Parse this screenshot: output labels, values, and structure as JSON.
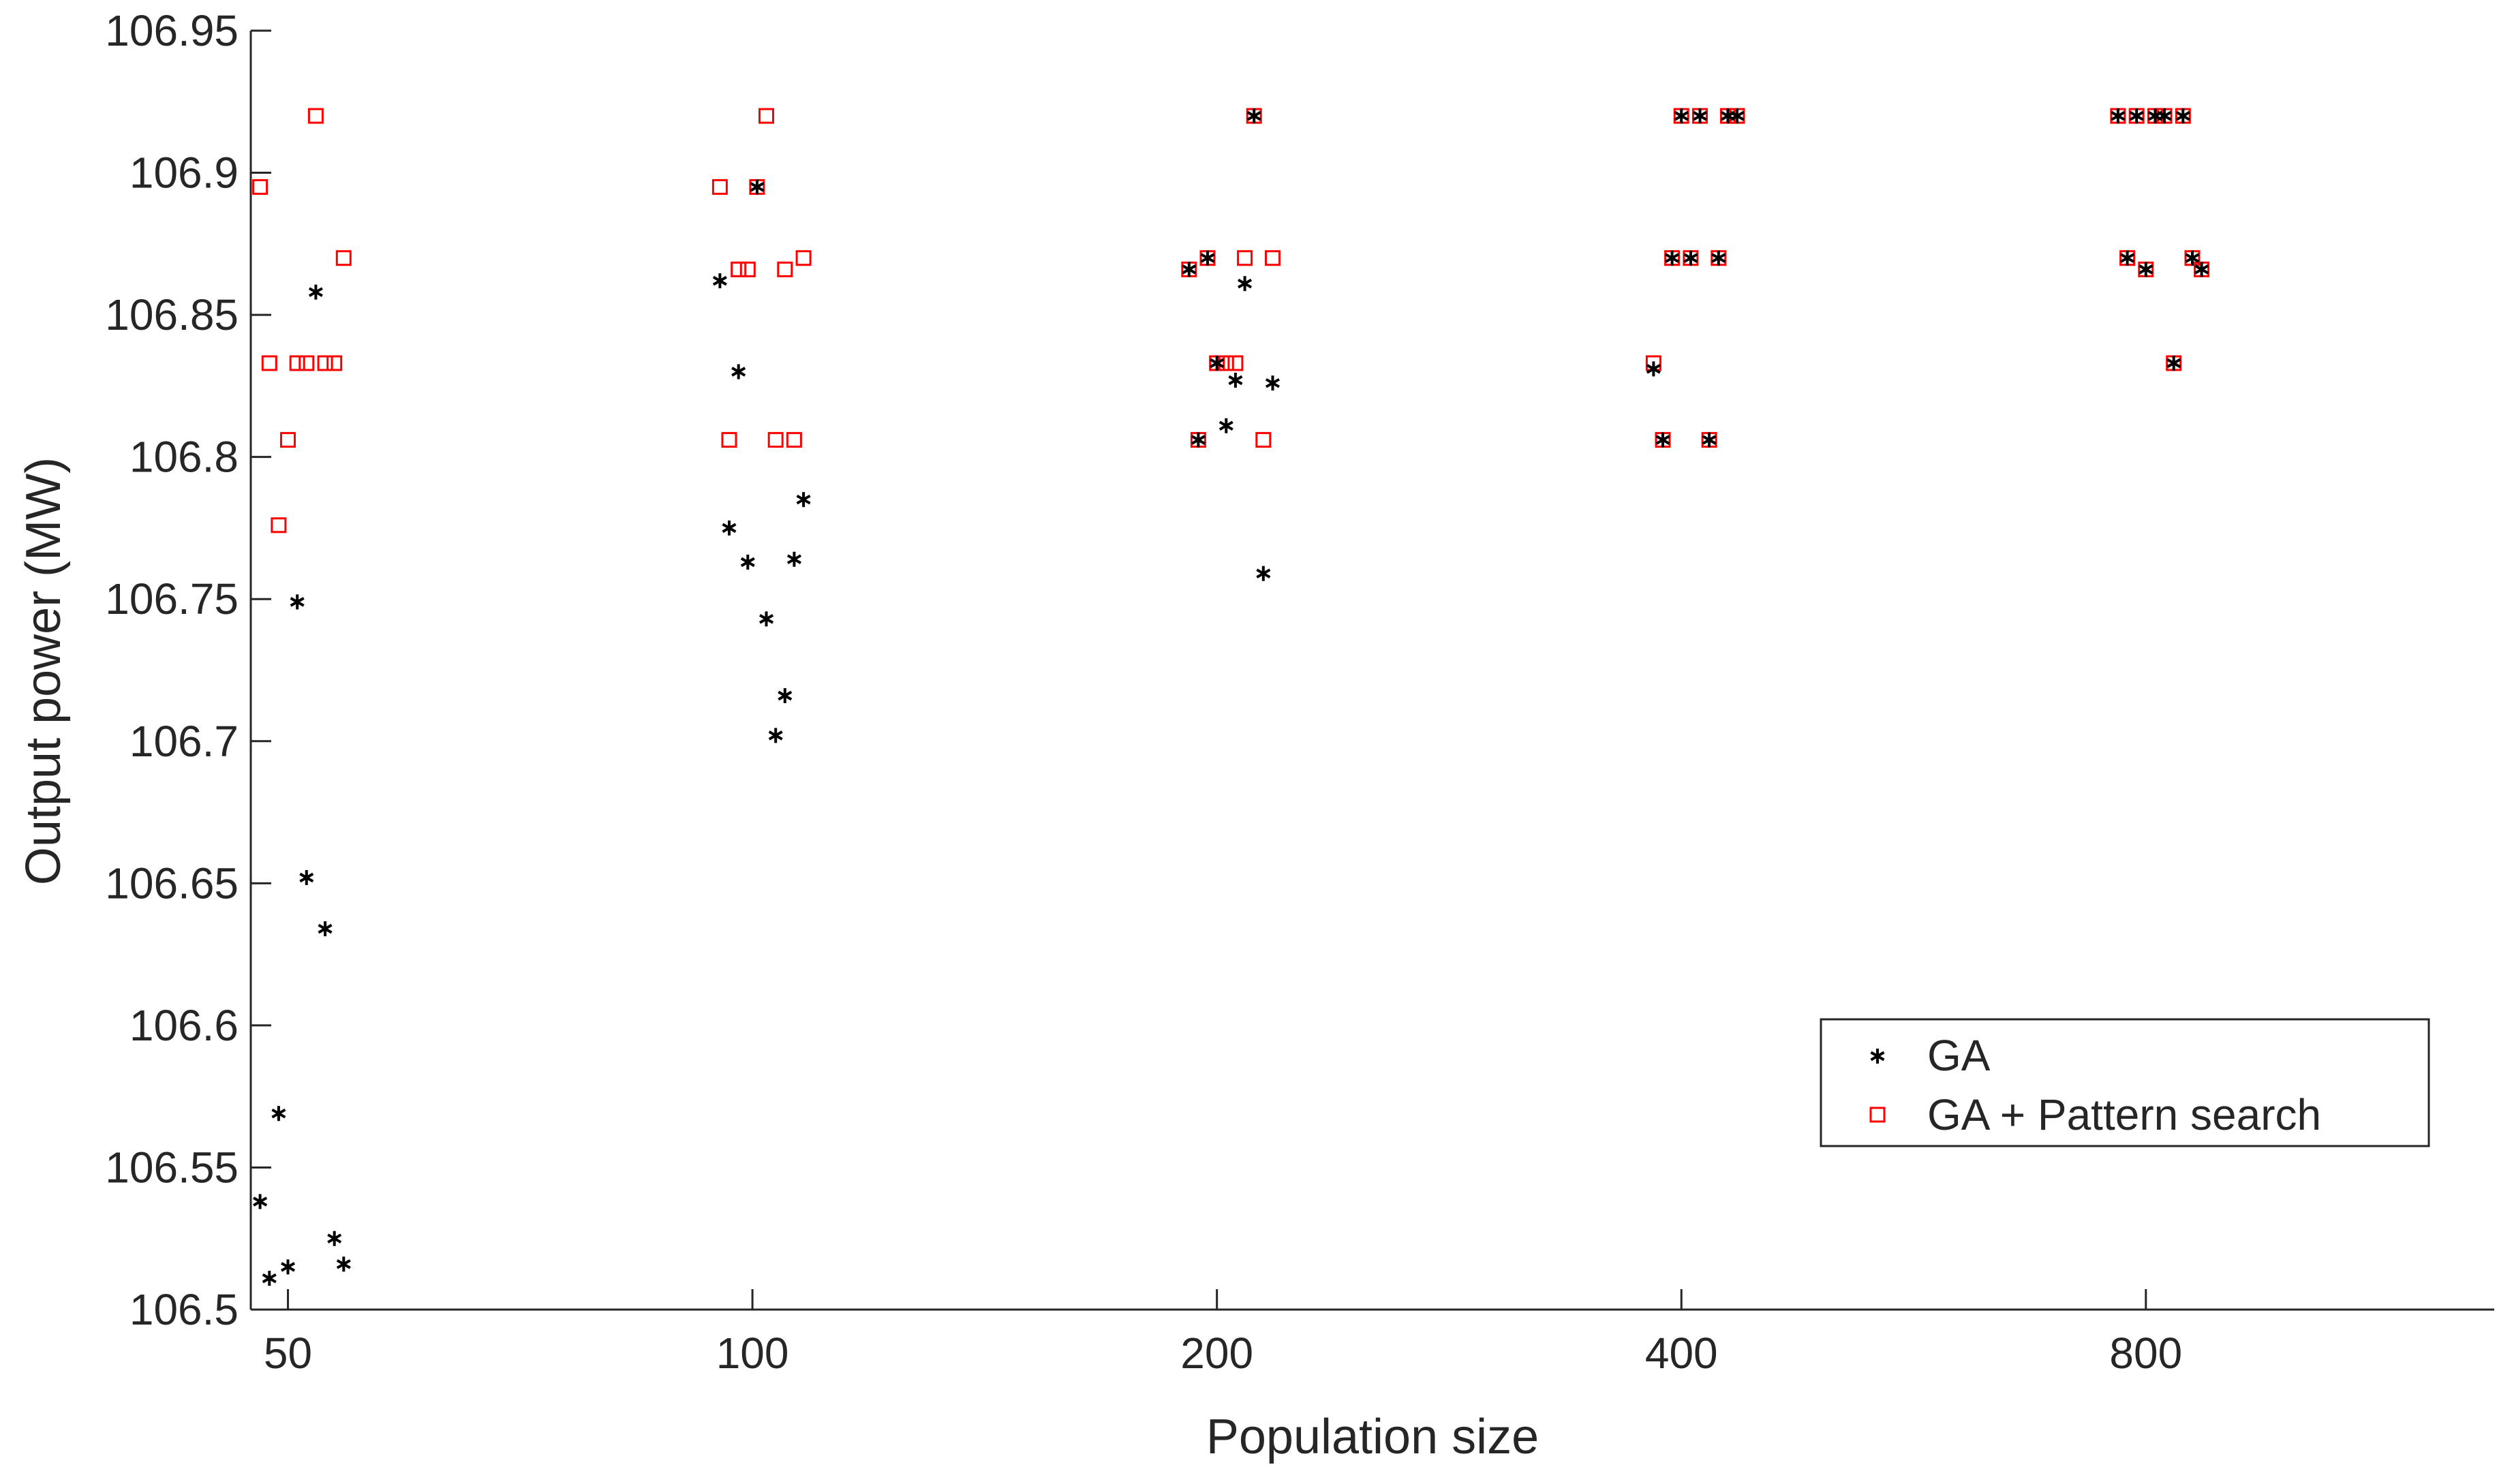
{
  "chart_data": {
    "type": "scatter",
    "title": "",
    "xlabel": "Population size",
    "ylabel": "Output power (MW)",
    "x_categories": [
      "50",
      "100",
      "200",
      "400",
      "800"
    ],
    "xlim": [
      -0.08,
      4.75
    ],
    "ylim": [
      106.5,
      106.95
    ],
    "yticks": [
      106.5,
      106.55,
      106.6,
      106.65,
      106.7,
      106.75,
      106.8,
      106.85,
      106.9,
      106.95
    ],
    "ytick_labels": [
      "106.5",
      "106.55",
      "106.6",
      "106.65",
      "106.7",
      "106.75",
      "106.8",
      "106.85",
      "106.9",
      "106.95"
    ],
    "grid": false,
    "legend_position": "lower-right",
    "series": [
      {
        "name": "GA",
        "marker": "asterisk",
        "color": "#000000",
        "points": [
          [
            -0.06,
            106.538
          ],
          [
            -0.04,
            106.511
          ],
          [
            -0.02,
            106.569
          ],
          [
            0.0,
            106.515
          ],
          [
            0.02,
            106.749
          ],
          [
            0.04,
            106.652
          ],
          [
            0.06,
            106.858
          ],
          [
            0.08,
            106.634
          ],
          [
            0.1,
            106.525
          ],
          [
            0.12,
            106.516
          ],
          [
            0.93,
            106.862
          ],
          [
            0.95,
            106.775
          ],
          [
            0.97,
            106.83
          ],
          [
            0.99,
            106.763
          ],
          [
            1.01,
            106.895
          ],
          [
            1.03,
            106.743
          ],
          [
            1.05,
            106.702
          ],
          [
            1.07,
            106.716
          ],
          [
            1.09,
            106.764
          ],
          [
            1.11,
            106.785
          ],
          [
            1.94,
            106.866
          ],
          [
            1.96,
            106.806
          ],
          [
            1.98,
            106.87
          ],
          [
            2.0,
            106.833
          ],
          [
            2.02,
            106.811
          ],
          [
            2.04,
            106.827
          ],
          [
            2.06,
            106.861
          ],
          [
            2.08,
            106.92
          ],
          [
            2.1,
            106.759
          ],
          [
            2.12,
            106.826
          ],
          [
            2.94,
            106.831
          ],
          [
            2.96,
            106.806
          ],
          [
            2.98,
            106.87
          ],
          [
            3.0,
            106.92
          ],
          [
            3.02,
            106.87
          ],
          [
            3.04,
            106.92
          ],
          [
            3.06,
            106.806
          ],
          [
            3.08,
            106.87
          ],
          [
            3.1,
            106.92
          ],
          [
            3.12,
            106.92
          ],
          [
            3.94,
            106.92
          ],
          [
            3.96,
            106.87
          ],
          [
            3.98,
            106.92
          ],
          [
            4.0,
            106.866
          ],
          [
            4.02,
            106.92
          ],
          [
            4.04,
            106.92
          ],
          [
            4.06,
            106.833
          ],
          [
            4.08,
            106.92
          ],
          [
            4.1,
            106.87
          ],
          [
            4.12,
            106.866
          ]
        ]
      },
      {
        "name": "GA + Pattern search",
        "marker": "square",
        "color": "#ff0000",
        "points": [
          [
            -0.06,
            106.895
          ],
          [
            -0.04,
            106.833
          ],
          [
            -0.02,
            106.776
          ],
          [
            0.0,
            106.806
          ],
          [
            0.02,
            106.833
          ],
          [
            0.04,
            106.833
          ],
          [
            0.06,
            106.92
          ],
          [
            0.08,
            106.833
          ],
          [
            0.1,
            106.833
          ],
          [
            0.12,
            106.87
          ],
          [
            0.93,
            106.895
          ],
          [
            0.95,
            106.806
          ],
          [
            0.97,
            106.866
          ],
          [
            0.99,
            106.866
          ],
          [
            1.01,
            106.895
          ],
          [
            1.03,
            106.92
          ],
          [
            1.05,
            106.806
          ],
          [
            1.07,
            106.866
          ],
          [
            1.09,
            106.806
          ],
          [
            1.11,
            106.87
          ],
          [
            1.94,
            106.866
          ],
          [
            1.96,
            106.806
          ],
          [
            1.98,
            106.87
          ],
          [
            2.0,
            106.833
          ],
          [
            2.02,
            106.833
          ],
          [
            2.04,
            106.833
          ],
          [
            2.06,
            106.87
          ],
          [
            2.08,
            106.92
          ],
          [
            2.1,
            106.806
          ],
          [
            2.12,
            106.87
          ],
          [
            2.94,
            106.833
          ],
          [
            2.96,
            106.806
          ],
          [
            2.98,
            106.87
          ],
          [
            3.0,
            106.92
          ],
          [
            3.02,
            106.87
          ],
          [
            3.04,
            106.92
          ],
          [
            3.06,
            106.806
          ],
          [
            3.08,
            106.87
          ],
          [
            3.1,
            106.92
          ],
          [
            3.12,
            106.92
          ],
          [
            3.94,
            106.92
          ],
          [
            3.96,
            106.87
          ],
          [
            3.98,
            106.92
          ],
          [
            4.0,
            106.866
          ],
          [
            4.02,
            106.92
          ],
          [
            4.04,
            106.92
          ],
          [
            4.06,
            106.833
          ],
          [
            4.08,
            106.92
          ],
          [
            4.1,
            106.87
          ],
          [
            4.12,
            106.866
          ]
        ]
      }
    ]
  }
}
